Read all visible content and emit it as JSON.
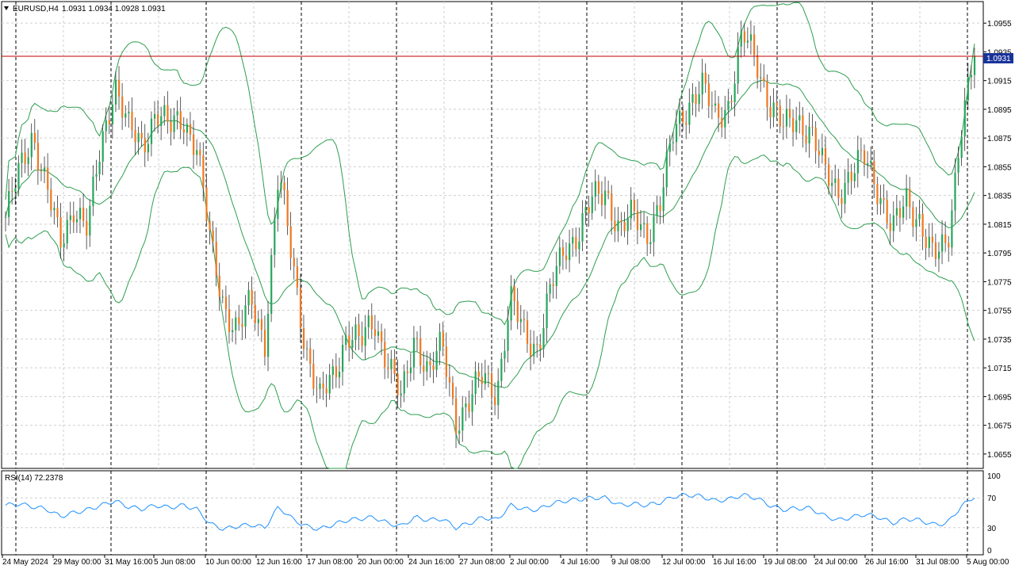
{
  "symbol_header": {
    "symbol": "EURUSD,H4",
    "ohlc_text": "1.0931 1.0934 1.0928 1.0931"
  },
  "current_price_label": "1.0931",
  "price_scale": [
    "1.0955",
    "1.0935",
    "1.0915",
    "1.0895",
    "1.0875",
    "1.0855",
    "1.0835",
    "1.0815",
    "1.0795",
    "1.0775",
    "1.0755",
    "1.0735",
    "1.0715",
    "1.0695",
    "1.0675",
    "1.0655"
  ],
  "time_scale": [
    "24 May 2024",
    "29 May 00:00",
    "31 May 16:00",
    "5 Jun 08:00",
    "10 Jun 00:00",
    "12 Jun 16:00",
    "17 Jun 08:00",
    "20 Jun 00:00",
    "24 Jun 16:00",
    "27 Jun 08:00",
    "2 Jul 00:00",
    "4 Jul 16:00",
    "9 Jul 08:00",
    "12 Jul 00:00",
    "16 Jul 16:00",
    "19 Jul 08:00",
    "24 Jul 00:00",
    "26 Jul 16:00",
    "31 Jul 08:00",
    "5 Aug 00:00"
  ],
  "rsi": {
    "label": "RSI(14) 72.2378",
    "scale": [
      "100",
      "70",
      "30",
      "0"
    ]
  },
  "colors": {
    "bull": "#26a65b",
    "bear": "#f07820",
    "bands": "#2e9e4f",
    "rsi_line": "#1e90ff",
    "price_line": "#c00000",
    "price_tag": "#1a3399",
    "grid": "#cfcfcf",
    "day_sep": "#000000"
  },
  "chart_data": {
    "type": "line",
    "description_series": "EURUSD H4 candles with Bollinger Bands and RSI(14)",
    "ylim": [
      1.0645,
      1.097
    ],
    "rsi_ylim": [
      0,
      100
    ],
    "close_path": [
      1.082,
      1.085,
      1.088,
      1.084,
      1.08,
      1.083,
      1.081,
      1.087,
      1.0915,
      1.088,
      1.087,
      1.0895,
      1.088,
      1.089,
      1.087,
      1.08,
      1.076,
      1.074,
      1.076,
      1.0735,
      1.085,
      1.079,
      1.073,
      1.069,
      1.071,
      1.074,
      1.073,
      1.075,
      1.072,
      1.069,
      1.074,
      1.071,
      1.073,
      1.068,
      1.069,
      1.071,
      1.07,
      1.076,
      1.074,
      1.073,
      1.077,
      1.08,
      1.081,
      1.083,
      1.084,
      1.081,
      1.082,
      1.081,
      1.083,
      1.088,
      1.09,
      1.091,
      1.089,
      1.09,
      1.0945,
      1.093,
      1.09,
      1.088,
      1.089,
      1.088,
      1.085,
      1.084,
      1.085,
      1.086,
      1.084,
      1.081,
      1.083,
      1.082,
      1.079,
      1.08,
      1.0885,
      1.0931
    ],
    "rsi_path": [
      60,
      62,
      58,
      55,
      45,
      50,
      54,
      60,
      66,
      58,
      55,
      60,
      57,
      60,
      55,
      35,
      28,
      32,
      34,
      30,
      58,
      42,
      32,
      28,
      34,
      40,
      42,
      44,
      36,
      32,
      44,
      40,
      42,
      30,
      36,
      44,
      40,
      60,
      55,
      54,
      62,
      66,
      68,
      70,
      70,
      60,
      62,
      60,
      64,
      72,
      74,
      72,
      66,
      68,
      74,
      70,
      60,
      54,
      56,
      56,
      46,
      40,
      44,
      48,
      44,
      36,
      42,
      40,
      34,
      36,
      58,
      72
    ]
  }
}
